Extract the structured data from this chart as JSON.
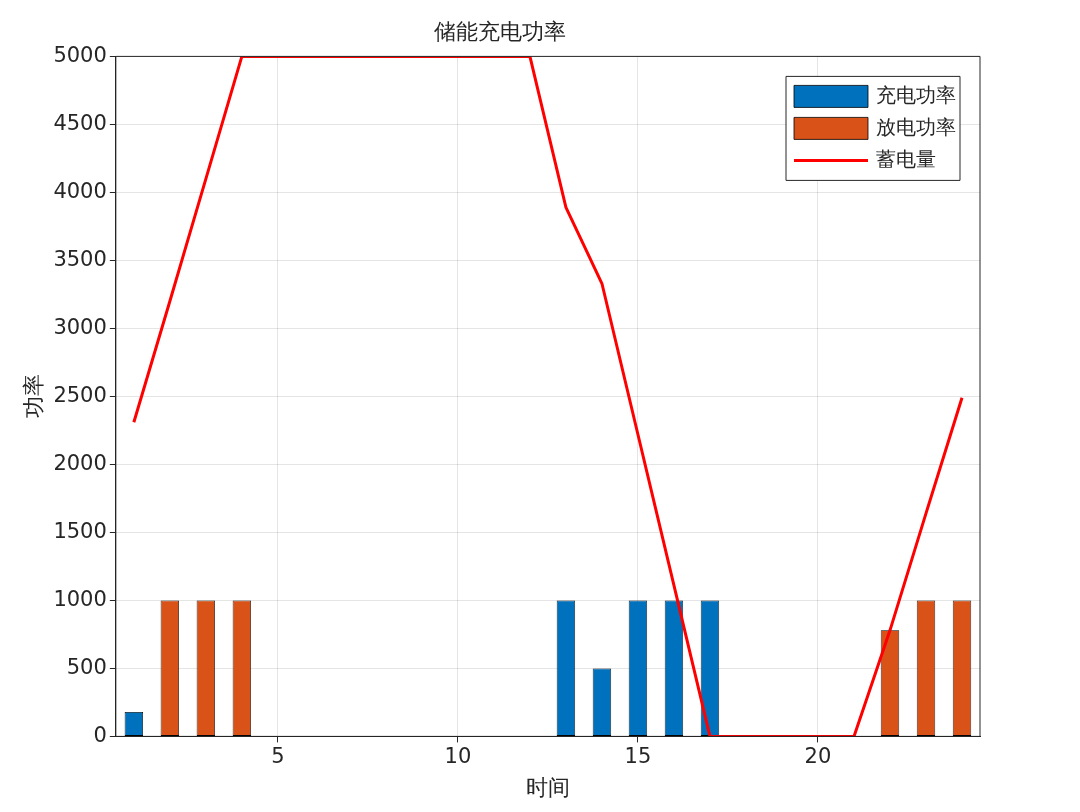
{
  "chart_data": {
    "type": "bar",
    "title": "储能充电功率",
    "xlabel": "时间",
    "ylabel": "功率",
    "x": [
      1,
      2,
      3,
      4,
      5,
      6,
      7,
      8,
      9,
      10,
      11,
      12,
      13,
      14,
      15,
      16,
      17,
      18,
      19,
      20,
      21,
      22,
      23,
      24
    ],
    "series": [
      {
        "name": "充电功率",
        "color": "#0072bd",
        "values": [
          180,
          0,
          0,
          0,
          0,
          0,
          0,
          0,
          0,
          0,
          0,
          0,
          1000,
          500,
          1000,
          1000,
          1000,
          0,
          0,
          0,
          0,
          0,
          0,
          0
        ]
      },
      {
        "name": "放电功率",
        "color": "#d95319",
        "values": [
          0,
          1000,
          1000,
          1000,
          0,
          0,
          0,
          0,
          0,
          0,
          0,
          0,
          0,
          0,
          0,
          0,
          0,
          0,
          0,
          0,
          0,
          780,
          1000,
          1000
        ]
      },
      {
        "name": "蓄电量",
        "type": "line",
        "color": "#ff0000",
        "values": [
          2310,
          3200,
          4100,
          5000,
          5000,
          5000,
          5000,
          5000,
          5000,
          5000,
          5000,
          5000,
          3890,
          3330,
          2220,
          1110,
          0,
          0,
          0,
          0,
          0,
          780,
          1640,
          2490
        ]
      }
    ],
    "stacked": true,
    "xlim": [
      0.5,
      24.5
    ],
    "xticks": [
      5,
      10,
      15,
      20
    ],
    "ylim": [
      0,
      5000
    ],
    "yticks": [
      0,
      500,
      1000,
      1500,
      2000,
      2500,
      3000,
      3500,
      4000,
      4500,
      5000
    ],
    "grid": true,
    "legend": "top right",
    "marker": "none",
    "line_style": "solid"
  }
}
